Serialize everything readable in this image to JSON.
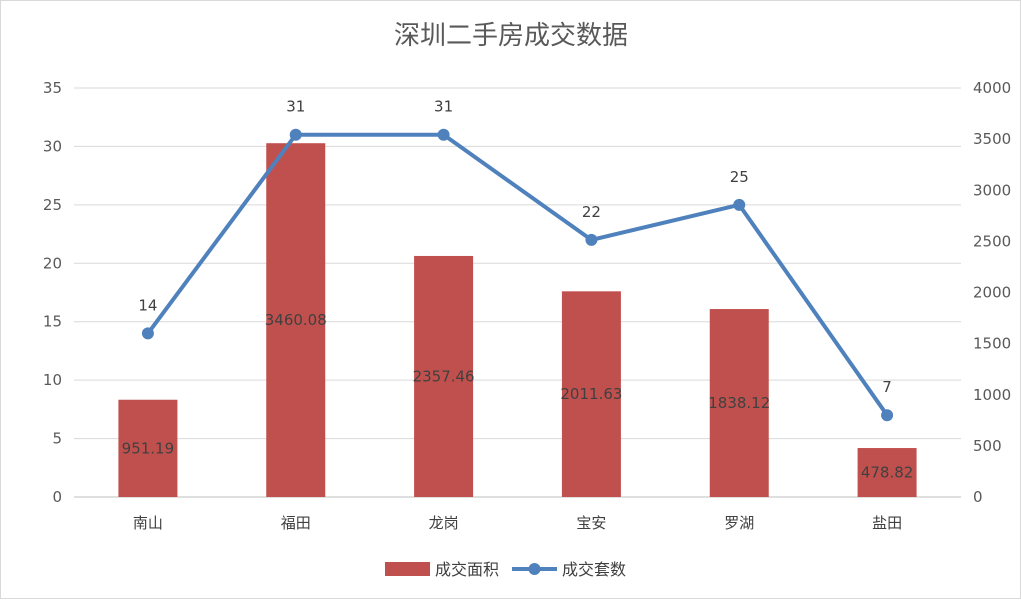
{
  "chart_data": {
    "type": "bar+line",
    "title": "深圳二手房成交数据",
    "categories": [
      "南山",
      "福田",
      "龙岗",
      "宝安",
      "罗湖",
      "盐田"
    ],
    "series": [
      {
        "name": "成交面积",
        "type": "bar",
        "axis": "left",
        "values": [
          951.19,
          3460.08,
          2357.46,
          2011.63,
          1838.12,
          478.82
        ],
        "labels": [
          "951.19",
          "3460.08",
          "2357.46",
          "2011.63",
          "1838.12",
          "478.82"
        ],
        "color": "#c0504d"
      },
      {
        "name": "成交套数",
        "type": "line",
        "axis": "right",
        "values": [
          14,
          31,
          31,
          22,
          25,
          7
        ],
        "labels": [
          "14",
          "31",
          "31",
          "22",
          "25",
          "7"
        ],
        "color": "#4f81bd"
      }
    ],
    "y_left": {
      "min": 0,
      "max": 35,
      "ticks": [
        "0",
        "5",
        "10",
        "15",
        "20",
        "25",
        "30",
        "35"
      ]
    },
    "y_right": {
      "min": 0,
      "max": 4000,
      "ticks": [
        "0",
        "500",
        "1000",
        "1500",
        "2000",
        "2500",
        "3000",
        "3500",
        "4000"
      ]
    },
    "grid": true,
    "legend": "bottom",
    "colors": {
      "bar": "#c0504d",
      "line": "#4f81bd",
      "grid": "#d9d9d9",
      "axis": "#bfbfbf"
    }
  }
}
